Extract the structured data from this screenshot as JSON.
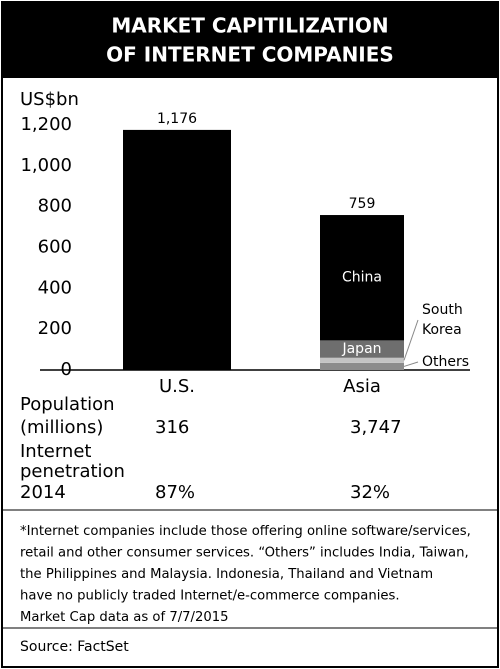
{
  "chart_data": {
    "type": "stacked-bar",
    "title": [
      "MARKET CAPITILIZATION",
      "OF INTERNET COMPANIES"
    ],
    "y_label": "US$bn",
    "categories": [
      "U.S.",
      "Asia"
    ],
    "series": [
      {
        "color": "#000000",
        "values": [
          1176,
          null
        ]
      },
      {
        "name": "Others",
        "color": "#8c8c8c",
        "values": [
          null,
          35
        ]
      },
      {
        "name": "South Korea",
        "color": "#c4c4c4",
        "values": [
          null,
          25
        ]
      },
      {
        "name": "Japan",
        "color": "#6e6e6e",
        "values": [
          null,
          85
        ]
      },
      {
        "name": "China",
        "color": "#000000",
        "values": [
          null,
          614
        ]
      }
    ],
    "totals": [
      1176,
      759
    ],
    "total_labels": [
      "1,176",
      "759"
    ],
    "ylim": [
      0,
      1200
    ],
    "yticks": [
      0,
      200,
      400,
      600,
      800,
      {
        "value": 1000,
        "label": "1,000"
      },
      {
        "value": 1200,
        "label": "1,200"
      }
    ],
    "grid": false
  },
  "table": {
    "rows": [
      {
        "label": [
          "Population",
          "(millions)"
        ],
        "values": [
          "316",
          "3,747"
        ]
      },
      {
        "label": [
          "Internet",
          "penetration",
          "2014"
        ],
        "values": [
          "87%",
          "32%"
        ]
      }
    ]
  },
  "footnote": [
    "*Internet companies include those offering online software/services,",
    "retail and other consumer services. “Others” includes India, Taiwan,",
    "the Philippines and Malaysia. Indonesia, Thailand and Vietnam",
    "have no publicly traded Internet/e-commerce companies.",
    "Market Cap data as of 7/7/2015"
  ],
  "source": "Source: FactSet"
}
